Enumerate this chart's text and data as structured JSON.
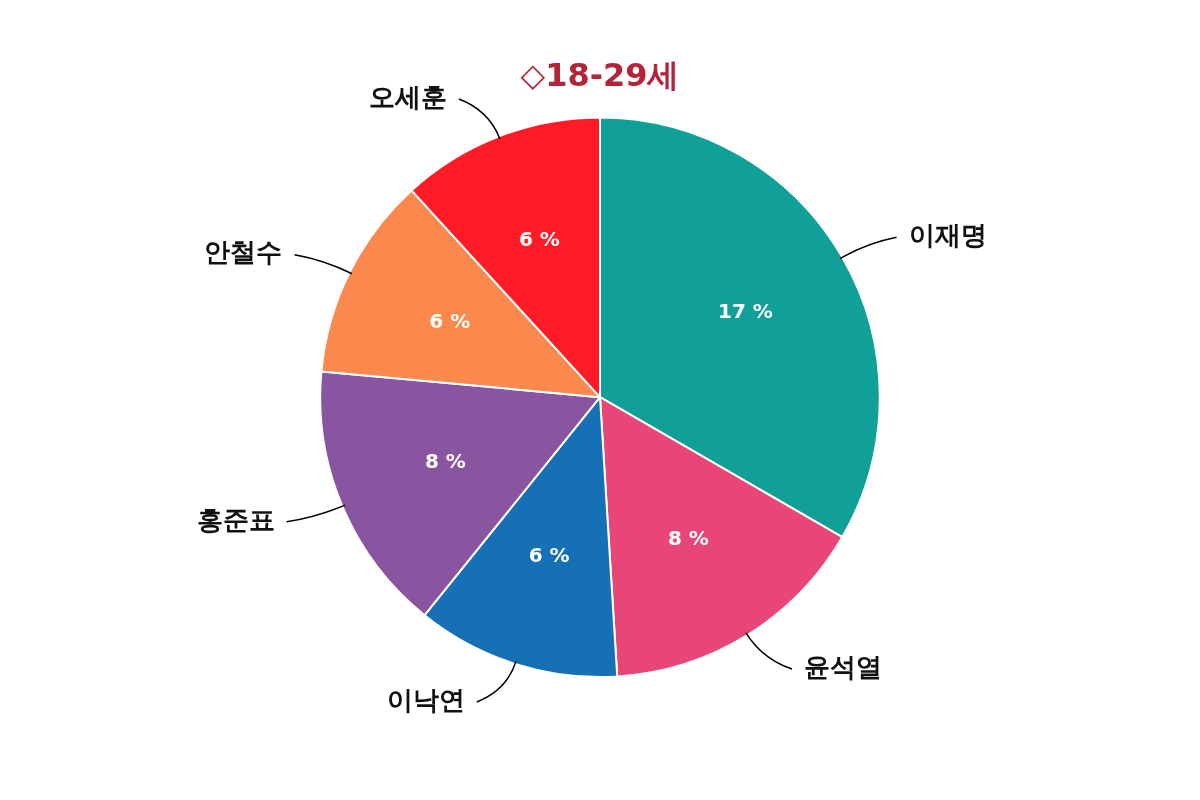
{
  "chart_data": {
    "type": "pie",
    "title": "◇18-29세",
    "categories": [
      "이재명",
      "윤석열",
      "이낙연",
      "홍준표",
      "안철수",
      "오세훈"
    ],
    "values": [
      17,
      8,
      6,
      8,
      6,
      6
    ],
    "value_labels": [
      "17 %",
      "8 %",
      "6 %",
      "8 %",
      "6 %",
      "6 %"
    ],
    "colors": [
      "#10a098",
      "#e84677",
      "#1570b5",
      "#8a55a0",
      "#fb884d",
      "#ff1c26"
    ],
    "legend": false
  }
}
